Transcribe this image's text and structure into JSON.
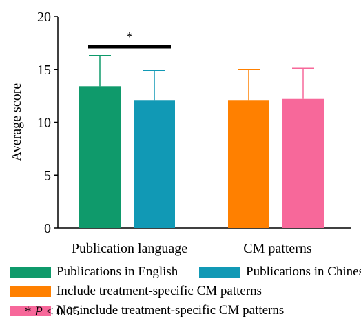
{
  "chart_data": {
    "type": "bar",
    "title": "",
    "xlabel": "",
    "ylabel": "Average score",
    "ylim": [
      0,
      20
    ],
    "yticks": [
      0,
      5,
      10,
      15,
      20
    ],
    "grid": false,
    "legend_position": "bottom",
    "groups": [
      {
        "label": "Publication language",
        "bars": [
          {
            "name": "Publications in English",
            "value": 13.4,
            "error": 2.9,
            "color": "#0f9a6b"
          },
          {
            "name": "Publications in Chinese",
            "value": 12.1,
            "error": 2.8,
            "color": "#1199b5"
          }
        ],
        "significance": "*"
      },
      {
        "label": "CM patterns",
        "bars": [
          {
            "name": "Include treatment-specific CM patterns",
            "value": 12.1,
            "error": 2.9,
            "color": "#ff8000"
          },
          {
            "name": "Not include treatment-specific CM patterns",
            "value": 12.2,
            "error": 2.9,
            "color": "#f7689a"
          }
        ]
      }
    ],
    "note": {
      "star": "*",
      "p": "P",
      "rest": "< 0.05"
    }
  }
}
